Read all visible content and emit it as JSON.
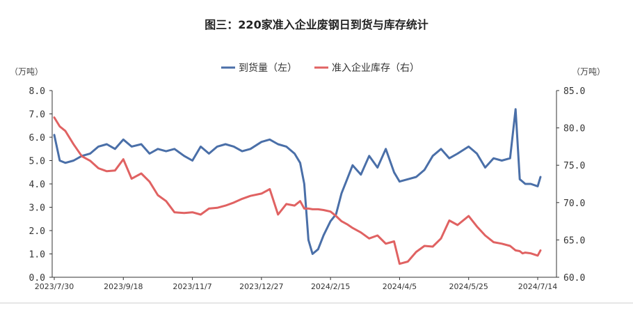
{
  "chart_data": {
    "type": "line",
    "title": "图三：220家准入企业废钢日到货与库存统计",
    "left_unit": "（万吨）",
    "right_unit": "（万吨）",
    "legend_position": "top-center",
    "grid": false,
    "left_axis": {
      "min": 0,
      "max": 8,
      "ticks": [
        "0.0",
        "1.0",
        "2.0",
        "3.0",
        "4.0",
        "5.0",
        "6.0",
        "7.0",
        "8.0"
      ]
    },
    "right_axis": {
      "min": 60,
      "max": 85,
      "ticks": [
        "60.0",
        "65.0",
        "70.0",
        "75.0",
        "80.0",
        "85.0"
      ]
    },
    "x_ticks": [
      "2023/7/30",
      "2023/9/18",
      "2023/11/7",
      "2023/12/27",
      "2024/2/15",
      "2024/4/5",
      "2024/5/25",
      "2024/7/14"
    ],
    "series": [
      {
        "name": "到货量（左）",
        "axis": "left",
        "color": "#4a6fa8",
        "x": [
          "2023/7/30",
          "2023/8/3",
          "2023/8/7",
          "2023/8/13",
          "2023/8/19",
          "2023/8/25",
          "2023/8/31",
          "2023/9/6",
          "2023/9/12",
          "2023/9/18",
          "2023/9/24",
          "2023/10/1",
          "2023/10/7",
          "2023/10/13",
          "2023/10/19",
          "2023/10/25",
          "2023/11/1",
          "2023/11/7",
          "2023/11/13",
          "2023/11/19",
          "2023/11/25",
          "2023/12/1",
          "2023/12/7",
          "2023/12/13",
          "2023/12/19",
          "2023/12/27",
          "2024/1/2",
          "2024/1/8",
          "2024/1/14",
          "2024/1/20",
          "2024/1/24",
          "2024/1/27",
          "2024/1/30",
          "2024/2/2",
          "2024/2/6",
          "2024/2/10",
          "2024/2/15",
          "2024/2/19",
          "2024/2/23",
          "2024/2/27",
          "2024/3/2",
          "2024/3/8",
          "2024/3/14",
          "2024/3/20",
          "2024/3/26",
          "2024/4/1",
          "2024/4/5",
          "2024/4/11",
          "2024/4/17",
          "2024/4/23",
          "2024/4/29",
          "2024/5/5",
          "2024/5/11",
          "2024/5/17",
          "2024/5/25",
          "2024/5/31",
          "2024/6/6",
          "2024/6/12",
          "2024/6/18",
          "2024/6/24",
          "2024/6/28",
          "2024/7/1",
          "2024/7/3",
          "2024/7/5",
          "2024/7/9",
          "2024/7/14",
          "2024/7/16"
        ],
        "values": [
          6.1,
          5.0,
          4.9,
          5.0,
          5.2,
          5.3,
          5.6,
          5.7,
          5.5,
          5.9,
          5.6,
          5.7,
          5.3,
          5.5,
          5.4,
          5.5,
          5.2,
          5.0,
          5.6,
          5.3,
          5.6,
          5.7,
          5.6,
          5.4,
          5.5,
          5.8,
          5.9,
          5.7,
          5.6,
          5.3,
          4.9,
          4.0,
          1.6,
          1.0,
          1.2,
          1.8,
          2.4,
          2.7,
          3.6,
          4.2,
          4.8,
          4.4,
          5.2,
          4.7,
          5.5,
          4.5,
          4.1,
          4.2,
          4.3,
          4.6,
          5.2,
          5.5,
          5.1,
          5.3,
          5.6,
          5.3,
          4.7,
          5.1,
          5.0,
          5.1,
          7.2,
          4.2,
          4.1,
          4.0,
          4.0,
          3.9,
          4.3
        ]
      },
      {
        "name": "准入企业库存（右）",
        "axis": "right",
        "color": "#e06262",
        "x": [
          "2023/7/30",
          "2023/8/3",
          "2023/8/7",
          "2023/8/13",
          "2023/8/19",
          "2023/8/25",
          "2023/8/31",
          "2023/9/6",
          "2023/9/12",
          "2023/9/18",
          "2023/9/24",
          "2023/10/1",
          "2023/10/7",
          "2023/10/13",
          "2023/10/19",
          "2023/10/25",
          "2023/11/1",
          "2023/11/7",
          "2023/11/13",
          "2023/11/19",
          "2023/11/25",
          "2023/12/1",
          "2023/12/7",
          "2023/12/13",
          "2023/12/19",
          "2023/12/27",
          "2024/1/2",
          "2024/1/8",
          "2024/1/14",
          "2024/1/20",
          "2024/1/24",
          "2024/1/27",
          "2024/1/30",
          "2024/2/2",
          "2024/2/6",
          "2024/2/10",
          "2024/2/15",
          "2024/2/19",
          "2024/2/23",
          "2024/2/27",
          "2024/3/2",
          "2024/3/8",
          "2024/3/14",
          "2024/3/20",
          "2024/3/26",
          "2024/4/1",
          "2024/4/5",
          "2024/4/11",
          "2024/4/17",
          "2024/4/23",
          "2024/4/29",
          "2024/5/5",
          "2024/5/11",
          "2024/5/17",
          "2024/5/25",
          "2024/5/31",
          "2024/6/6",
          "2024/6/12",
          "2024/6/18",
          "2024/6/24",
          "2024/6/28",
          "2024/7/1",
          "2024/7/3",
          "2024/7/5",
          "2024/7/9",
          "2024/7/14",
          "2024/7/16"
        ],
        "values": [
          81.4,
          80.2,
          79.6,
          77.8,
          76.2,
          75.6,
          74.6,
          74.2,
          74.3,
          75.8,
          73.2,
          73.9,
          72.8,
          71.0,
          70.2,
          68.7,
          68.6,
          68.7,
          68.4,
          69.2,
          69.3,
          69.6,
          70.0,
          70.5,
          70.9,
          71.2,
          71.8,
          68.4,
          69.8,
          69.6,
          70.2,
          69.2,
          69.2,
          69.1,
          69.1,
          69.0,
          68.8,
          68.2,
          67.5,
          67.1,
          66.6,
          66.0,
          65.2,
          65.6,
          64.5,
          64.8,
          61.8,
          62.1,
          63.4,
          64.2,
          64.1,
          65.2,
          67.6,
          67.0,
          68.2,
          66.8,
          65.6,
          64.7,
          64.5,
          64.2,
          63.6,
          63.5,
          63.2,
          63.3,
          63.2,
          62.9,
          63.6
        ]
      }
    ]
  }
}
